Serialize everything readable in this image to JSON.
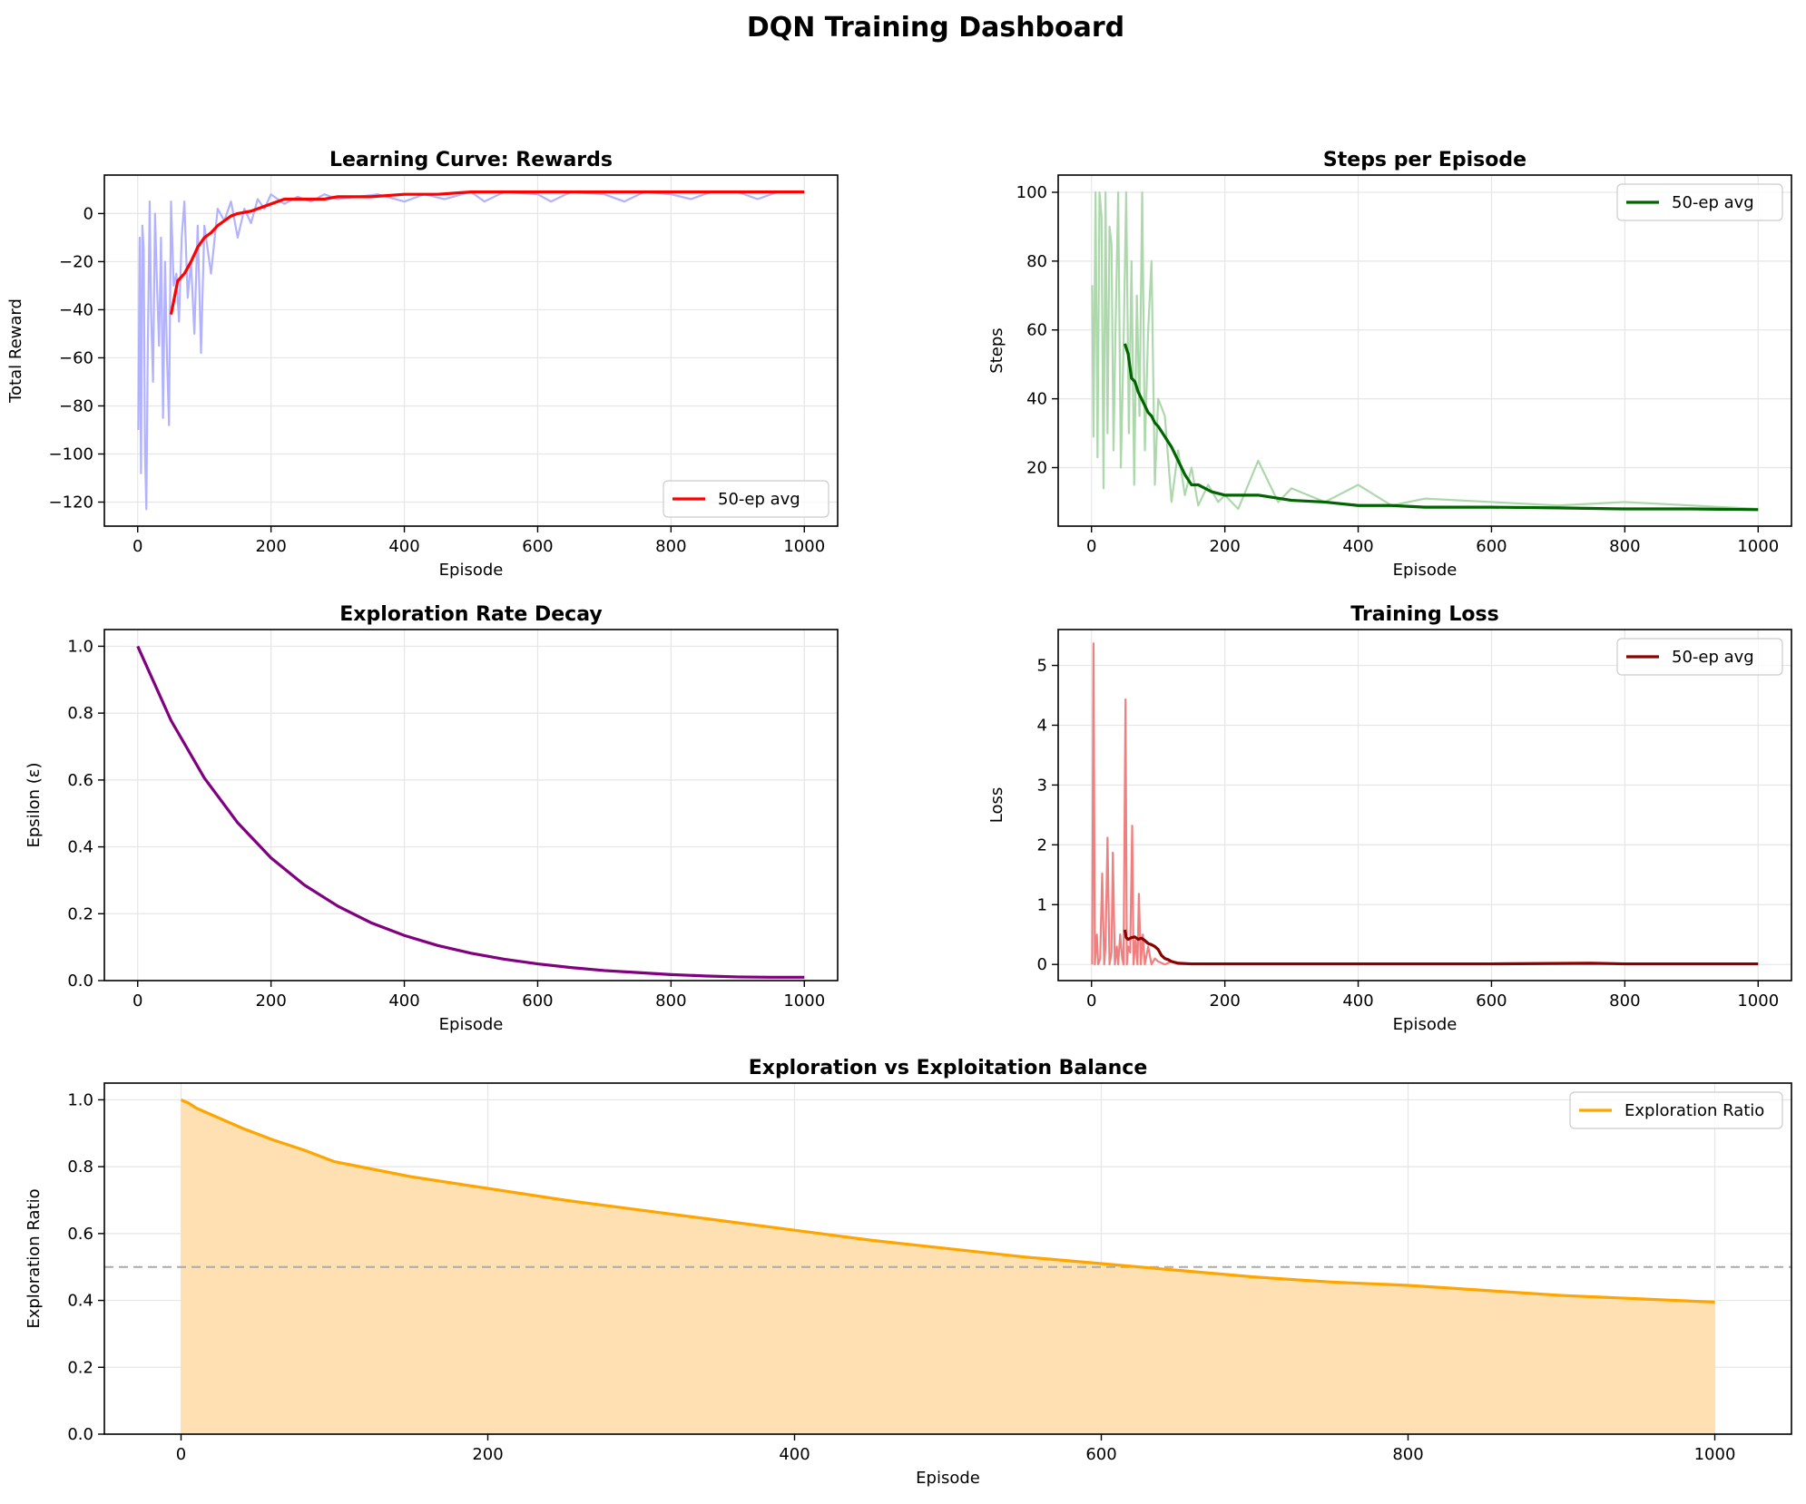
{
  "figure": {
    "title": "DQN Training Dashboard"
  },
  "chart_data": [
    {
      "type": "line",
      "title": "Learning Curve: Rewards",
      "xlabel": "Episode",
      "ylabel": "Total Reward",
      "xlim": [
        -50,
        1050
      ],
      "ylim": [
        -130,
        16
      ],
      "xticks": [
        0,
        200,
        400,
        600,
        800,
        1000
      ],
      "yticks": [
        -120,
        -100,
        -80,
        -60,
        -40,
        -20,
        0
      ],
      "ytick_labels": [
        "−120",
        "−100",
        "−80",
        "−60",
        "−40",
        "−20",
        "0"
      ],
      "grid": true,
      "legend": {
        "placement": "lower-right"
      },
      "series": [
        {
          "role": "raw",
          "color": "#b2b2ff",
          "x": [
            1,
            3,
            5,
            7,
            9,
            11,
            13,
            15,
            18,
            20,
            23,
            26,
            29,
            32,
            35,
            38,
            41,
            44,
            47,
            50,
            54,
            58,
            62,
            66,
            70,
            75,
            80,
            85,
            90,
            95,
            100,
            110,
            120,
            130,
            140,
            150,
            160,
            170,
            180,
            190,
            200,
            220,
            240,
            260,
            280,
            300,
            330,
            360,
            400,
            430,
            460,
            500,
            520,
            550,
            600,
            620,
            650,
            700,
            730,
            760,
            800,
            830,
            860,
            900,
            930,
            960,
            1000
          ],
          "y": [
            -90,
            -10,
            -108,
            -5,
            -15,
            -100,
            -123,
            -60,
            5,
            -40,
            -70,
            0,
            -30,
            -55,
            -10,
            -85,
            -20,
            -60,
            -88,
            5,
            -30,
            -25,
            -45,
            -10,
            5,
            -35,
            -20,
            -50,
            -5,
            -58,
            -5,
            -25,
            2,
            -3,
            5,
            -10,
            2,
            -4,
            6,
            2,
            8,
            4,
            7,
            5,
            8,
            6,
            7,
            8,
            5,
            8,
            6,
            9,
            5,
            9,
            8,
            5,
            9,
            8,
            5,
            9,
            8,
            6,
            9,
            9,
            6,
            9,
            9
          ]
        },
        {
          "role": "avg",
          "name": "50-ep avg",
          "color": "#ff0000",
          "x": [
            50,
            60,
            70,
            80,
            90,
            100,
            110,
            120,
            130,
            140,
            150,
            170,
            200,
            220,
            250,
            280,
            300,
            350,
            400,
            450,
            500,
            600,
            700,
            800,
            900,
            1000
          ],
          "y": [
            -42,
            -28,
            -25,
            -20,
            -14,
            -10,
            -8,
            -5,
            -3,
            -1,
            0,
            1,
            4,
            6,
            6,
            6,
            7,
            7,
            8,
            8,
            9,
            9,
            9,
            9,
            9,
            9
          ]
        }
      ]
    },
    {
      "type": "line",
      "title": "Steps per Episode",
      "xlabel": "Episode",
      "ylabel": "Steps",
      "xlim": [
        -50,
        1050
      ],
      "ylim": [
        3,
        105
      ],
      "xticks": [
        0,
        200,
        400,
        600,
        800,
        1000
      ],
      "yticks": [
        20,
        40,
        60,
        80,
        100
      ],
      "ytick_labels": [
        "20",
        "40",
        "60",
        "80",
        "100"
      ],
      "grid": true,
      "legend": {
        "placement": "upper-right"
      },
      "series": [
        {
          "role": "raw",
          "color": "#acd8ac",
          "x": [
            1,
            3,
            6,
            9,
            12,
            15,
            18,
            21,
            24,
            27,
            30,
            33,
            36,
            40,
            44,
            48,
            52,
            56,
            60,
            64,
            68,
            72,
            76,
            80,
            85,
            90,
            95,
            100,
            110,
            120,
            130,
            140,
            150,
            160,
            175,
            190,
            200,
            220,
            250,
            280,
            300,
            350,
            400,
            450,
            500,
            600,
            700,
            800,
            900,
            1000
          ],
          "y": [
            73,
            29,
            100,
            23,
            100,
            93,
            14,
            100,
            30,
            90,
            85,
            25,
            60,
            100,
            20,
            55,
            100,
            30,
            80,
            15,
            70,
            35,
            100,
            25,
            60,
            80,
            15,
            40,
            35,
            10,
            25,
            12,
            20,
            9,
            15,
            10,
            12,
            8,
            22,
            10,
            14,
            10,
            15,
            9,
            11,
            10,
            9,
            10,
            9,
            8
          ]
        },
        {
          "role": "avg",
          "name": "50-ep avg",
          "color": "#006400",
          "x": [
            50,
            55,
            60,
            65,
            70,
            75,
            80,
            85,
            90,
            95,
            100,
            110,
            120,
            130,
            140,
            150,
            160,
            180,
            200,
            250,
            300,
            350,
            400,
            450,
            500,
            550,
            600,
            700,
            800,
            900,
            1000
          ],
          "y": [
            56,
            53,
            46,
            45,
            42,
            40,
            38,
            36,
            35,
            33,
            32,
            29,
            26,
            22,
            18,
            15,
            15,
            13,
            12,
            12,
            10.5,
            10,
            9,
            9,
            8.5,
            8.5,
            8.5,
            8.3,
            8,
            8,
            7.8
          ]
        }
      ]
    },
    {
      "type": "line",
      "title": "Exploration Rate Decay",
      "xlabel": "Episode",
      "ylabel": "Epsilon (ε)",
      "xlim": [
        -50,
        1050
      ],
      "ylim": [
        0,
        1.05
      ],
      "xticks": [
        0,
        200,
        400,
        600,
        800,
        1000
      ],
      "yticks": [
        0.0,
        0.2,
        0.4,
        0.6,
        0.8,
        1.0
      ],
      "ytick_labels": [
        "0.0",
        "0.2",
        "0.4",
        "0.6",
        "0.8",
        "1.0"
      ],
      "grid": true,
      "series": [
        {
          "role": "main",
          "color": "#800080",
          "x": [
            0,
            50,
            100,
            150,
            200,
            250,
            300,
            350,
            400,
            450,
            500,
            550,
            600,
            650,
            700,
            750,
            800,
            850,
            900,
            950,
            1000
          ],
          "y": [
            1.0,
            0.778,
            0.606,
            0.472,
            0.367,
            0.286,
            0.223,
            0.173,
            0.135,
            0.105,
            0.082,
            0.064,
            0.05,
            0.039,
            0.03,
            0.024,
            0.018,
            0.014,
            0.011,
            0.01,
            0.01
          ]
        }
      ]
    },
    {
      "type": "line",
      "title": "Training Loss",
      "xlabel": "Episode",
      "ylabel": "Loss",
      "xlim": [
        -50,
        1050
      ],
      "ylim": [
        -0.27,
        5.6
      ],
      "xticks": [
        0,
        200,
        400,
        600,
        800,
        1000
      ],
      "yticks": [
        0,
        1,
        2,
        3,
        4,
        5
      ],
      "ytick_labels": [
        "0",
        "1",
        "2",
        "3",
        "4",
        "5"
      ],
      "grid": true,
      "legend": {
        "placement": "upper-right"
      },
      "series": [
        {
          "role": "raw",
          "color": "#f08080",
          "x": [
            1,
            3,
            5,
            8,
            10,
            13,
            16,
            19,
            21,
            24,
            27,
            30,
            32,
            35,
            38,
            40,
            43,
            46,
            48,
            51,
            53,
            55,
            58,
            61,
            63,
            66,
            69,
            71,
            74,
            77,
            80,
            85,
            90,
            95,
            100,
            110,
            120,
            130,
            150,
            200,
            1000
          ],
          "y": [
            0,
            5.37,
            0,
            0.5,
            0,
            0.1,
            1.52,
            0,
            0.3,
            2.12,
            0,
            0.2,
            1.87,
            0,
            0.3,
            0,
            0.5,
            0.1,
            0,
            4.43,
            0,
            0.3,
            0.2,
            2.32,
            0,
            0.4,
            0,
            1.18,
            0,
            0.5,
            0,
            0.3,
            0,
            0.1,
            0.05,
            0,
            0.05,
            0.01,
            0.01,
            0.01,
            0.01
          ]
        },
        {
          "role": "avg",
          "name": "50-ep avg",
          "color": "#8b0000",
          "x": [
            50,
            52,
            55,
            60,
            65,
            70,
            75,
            80,
            85,
            90,
            95,
            100,
            105,
            110,
            115,
            120,
            130,
            150,
            200,
            400,
            600,
            750,
            800,
            1000
          ],
          "y": [
            0.58,
            0.45,
            0.42,
            0.45,
            0.46,
            0.42,
            0.44,
            0.4,
            0.35,
            0.33,
            0.3,
            0.25,
            0.15,
            0.1,
            0.08,
            0.05,
            0.02,
            0.01,
            0.01,
            0.01,
            0.01,
            0.02,
            0.01,
            0.01
          ]
        }
      ]
    },
    {
      "type": "area",
      "title": "Exploration vs Exploitation Balance",
      "xlabel": "Episode",
      "ylabel": "Exploration Ratio",
      "xlim": [
        -50,
        1050
      ],
      "ylim": [
        0,
        1.05
      ],
      "xticks": [
        0,
        200,
        400,
        600,
        800,
        1000
      ],
      "yticks": [
        0.0,
        0.2,
        0.4,
        0.6,
        0.8,
        1.0
      ],
      "ytick_labels": [
        "0.0",
        "0.2",
        "0.4",
        "0.6",
        "0.8",
        "1.0"
      ],
      "grid": true,
      "reference_line": {
        "y": 0.5,
        "color": "#aaaaaa",
        "style": "dashed"
      },
      "legend": {
        "placement": "upper-right"
      },
      "series": [
        {
          "role": "main",
          "name": "Exploration Ratio",
          "color": "#ffa500",
          "fill": "#ffe0b2",
          "x": [
            0,
            5,
            10,
            20,
            40,
            60,
            80,
            100,
            150,
            200,
            250,
            300,
            350,
            400,
            450,
            500,
            550,
            600,
            650,
            700,
            750,
            800,
            850,
            900,
            950,
            1000
          ],
          "y": [
            1.0,
            0.99,
            0.975,
            0.955,
            0.915,
            0.88,
            0.85,
            0.815,
            0.77,
            0.735,
            0.7,
            0.67,
            0.64,
            0.61,
            0.58,
            0.555,
            0.53,
            0.51,
            0.49,
            0.47,
            0.455,
            0.445,
            0.43,
            0.415,
            0.405,
            0.395
          ]
        }
      ]
    }
  ]
}
